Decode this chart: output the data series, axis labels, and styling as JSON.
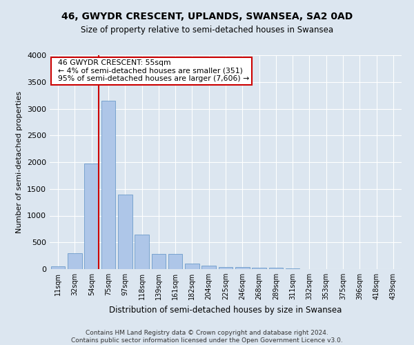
{
  "title": "46, GWYDR CRESCENT, UPLANDS, SWANSEA, SA2 0AD",
  "subtitle": "Size of property relative to semi-detached houses in Swansea",
  "xlabel": "Distribution of semi-detached houses by size in Swansea",
  "ylabel": "Number of semi-detached properties",
  "footer_line1": "Contains HM Land Registry data © Crown copyright and database right 2024.",
  "footer_line2": "Contains public sector information licensed under the Open Government Licence v3.0.",
  "annotation_title": "46 GWYDR CRESCENT: 55sqm",
  "annotation_line1": "← 4% of semi-detached houses are smaller (351)",
  "annotation_line2": "95% of semi-detached houses are larger (7,606) →",
  "bar_color": "#aec6e8",
  "bar_edge_color": "#5a8fc4",
  "vline_color": "#cc0000",
  "annotation_box_color": "#cc0000",
  "categories": [
    "11sqm",
    "32sqm",
    "54sqm",
    "75sqm",
    "97sqm",
    "118sqm",
    "139sqm",
    "161sqm",
    "182sqm",
    "204sqm",
    "225sqm",
    "246sqm",
    "268sqm",
    "289sqm",
    "311sqm",
    "332sqm",
    "353sqm",
    "375sqm",
    "396sqm",
    "418sqm",
    "439sqm"
  ],
  "values": [
    50,
    300,
    1980,
    3150,
    1390,
    640,
    290,
    280,
    105,
    65,
    45,
    35,
    25,
    20,
    10,
    5,
    3,
    2,
    1,
    1,
    1
  ],
  "ylim": [
    0,
    4000
  ],
  "yticks": [
    0,
    500,
    1000,
    1500,
    2000,
    2500,
    3000,
    3500,
    4000
  ],
  "property_bar_index": 2,
  "vline_x": 2.43,
  "background_color": "#dce6f0",
  "plot_bg_color": "#dce6f0",
  "grid_color": "#ffffff"
}
